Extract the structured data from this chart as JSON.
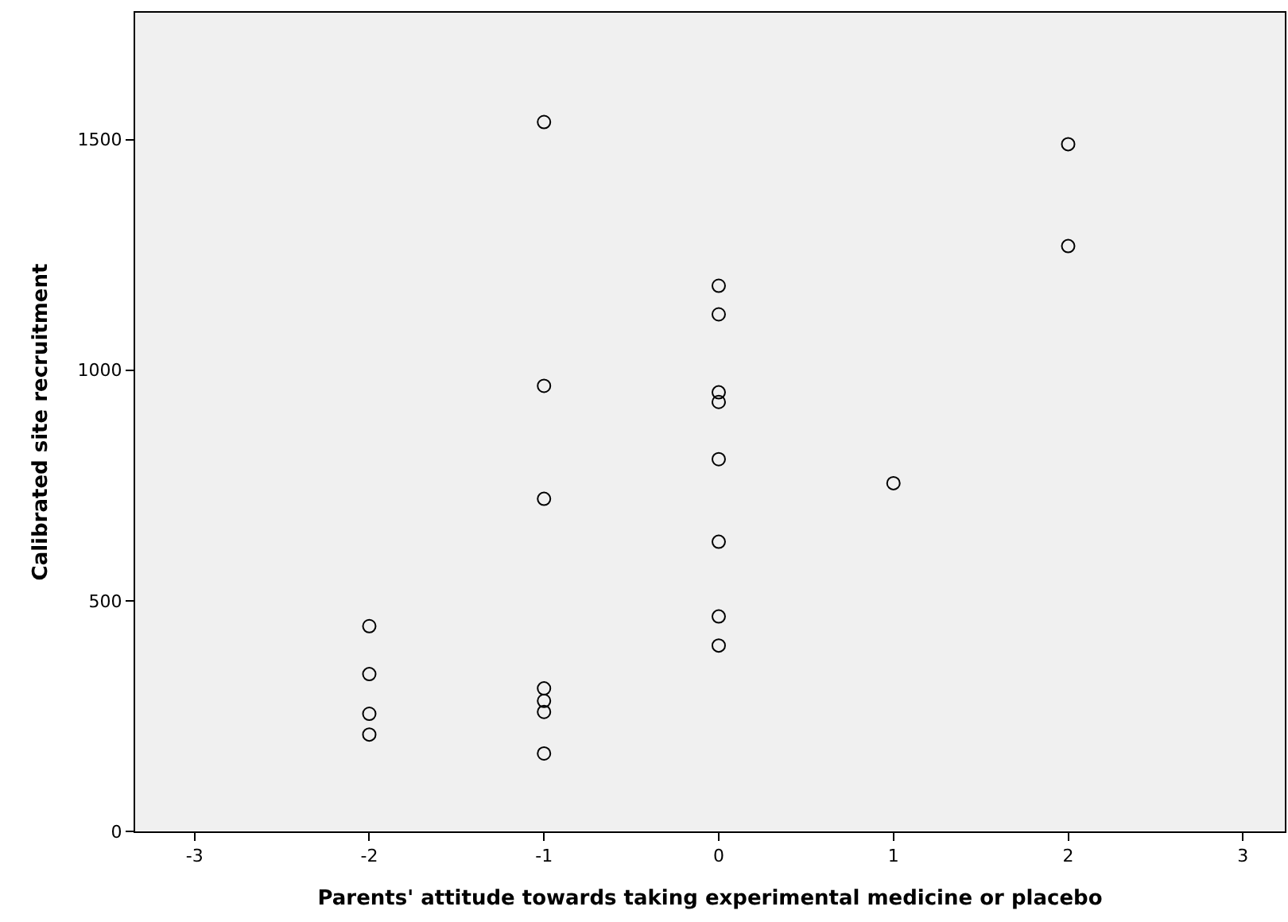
{
  "chart_data": {
    "type": "scatter",
    "xlabel": "Parents' attitude towards taking experimental medicine or placebo",
    "ylabel": "Calibrated site recruitment",
    "x": [
      -2,
      -2,
      -2,
      -2,
      -1,
      -1,
      -1,
      -1,
      -1,
      -1,
      -1,
      0,
      0,
      0,
      0,
      0,
      0,
      0,
      0,
      1,
      2,
      2
    ],
    "series": [
      {
        "color": "#000000",
        "values": [
          445,
          341,
          255,
          210,
          1538,
          966,
          721,
          310,
          283,
          259,
          169,
          1183,
          1121,
          952,
          931,
          807,
          628,
          466,
          403,
          755,
          1490,
          1269
        ]
      }
    ],
    "xlim": [
      -3.34,
      3.24
    ],
    "xticks": [
      -3,
      -2,
      -1,
      0,
      1,
      2,
      3
    ],
    "ylim": [
      0,
      1775
    ],
    "yticks": [
      0,
      500,
      1000,
      1500
    ],
    "marker": "circle",
    "grid": false
  }
}
